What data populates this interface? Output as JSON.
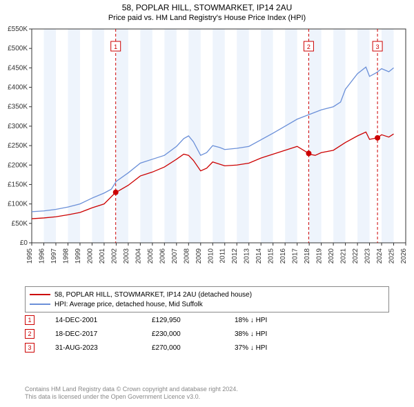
{
  "title": "58, POPLAR HILL, STOWMARKET, IP14 2AU",
  "subtitle": "Price paid vs. HM Land Registry's House Price Index (HPI)",
  "chart": {
    "type": "line",
    "background_color": "#ffffff",
    "band_color": "#eef4fc",
    "grid_color": "#e0e0e0",
    "axis_color": "#333333",
    "xlim": [
      1995,
      2026
    ],
    "ylim": [
      0,
      550000
    ],
    "ytick_step": 50000,
    "yticks": [
      "£0",
      "£50K",
      "£100K",
      "£150K",
      "£200K",
      "£250K",
      "£300K",
      "£350K",
      "£400K",
      "£450K",
      "£500K",
      "£550K"
    ],
    "xticks": [
      1995,
      1996,
      1997,
      1998,
      1999,
      2000,
      2001,
      2002,
      2003,
      2004,
      2005,
      2006,
      2007,
      2008,
      2009,
      2010,
      2011,
      2012,
      2013,
      2014,
      2015,
      2016,
      2017,
      2018,
      2019,
      2020,
      2021,
      2022,
      2023,
      2024,
      2025,
      2026
    ],
    "tick_fontsize": 10,
    "line_width": 1.3,
    "marker_radius": 4,
    "marker_color": "#cc0000",
    "markbox_border": "#cc0000",
    "dashed_line_color": "#cc0000",
    "series": [
      {
        "name": "hpi",
        "label": "HPI: Average price, detached house, Mid Suffolk",
        "color": "#6a8fd8",
        "data": [
          [
            1995,
            80000
          ],
          [
            1996,
            82000
          ],
          [
            1997,
            86000
          ],
          [
            1998,
            92000
          ],
          [
            1999,
            100000
          ],
          [
            2000,
            115000
          ],
          [
            2001,
            128000
          ],
          [
            2001.6,
            138000
          ],
          [
            2002,
            158000
          ],
          [
            2003,
            180000
          ],
          [
            2004,
            205000
          ],
          [
            2005,
            215000
          ],
          [
            2006,
            225000
          ],
          [
            2007,
            248000
          ],
          [
            2007.6,
            268000
          ],
          [
            2008,
            275000
          ],
          [
            2008.4,
            260000
          ],
          [
            2009,
            225000
          ],
          [
            2009.5,
            232000
          ],
          [
            2010,
            250000
          ],
          [
            2010.6,
            245000
          ],
          [
            2011,
            240000
          ],
          [
            2012,
            243000
          ],
          [
            2013,
            248000
          ],
          [
            2014,
            265000
          ],
          [
            2015,
            282000
          ],
          [
            2016,
            300000
          ],
          [
            2017,
            318000
          ],
          [
            2018,
            330000
          ],
          [
            2019,
            342000
          ],
          [
            2020,
            350000
          ],
          [
            2020.6,
            362000
          ],
          [
            2021,
            395000
          ],
          [
            2022,
            435000
          ],
          [
            2022.7,
            452000
          ],
          [
            2023,
            428000
          ],
          [
            2023.6,
            438000
          ],
          [
            2024,
            448000
          ],
          [
            2024.6,
            440000
          ],
          [
            2025,
            450000
          ]
        ]
      },
      {
        "name": "price_paid",
        "label": "58, POPLAR HILL, STOWMARKET, IP14 2AU (detached house)",
        "color": "#cc0000",
        "data": [
          [
            1995,
            62000
          ],
          [
            1996,
            64000
          ],
          [
            1997,
            67000
          ],
          [
            1998,
            72000
          ],
          [
            1999,
            78000
          ],
          [
            2000,
            90000
          ],
          [
            2001,
            100000
          ],
          [
            2001.96,
            129950
          ],
          [
            2002,
            130000
          ],
          [
            2003,
            148000
          ],
          [
            2004,
            172000
          ],
          [
            2005,
            182000
          ],
          [
            2006,
            195000
          ],
          [
            2007,
            215000
          ],
          [
            2007.6,
            228000
          ],
          [
            2008,
            225000
          ],
          [
            2008.4,
            212000
          ],
          [
            2009,
            185000
          ],
          [
            2009.5,
            192000
          ],
          [
            2010,
            208000
          ],
          [
            2010.6,
            202000
          ],
          [
            2011,
            198000
          ],
          [
            2012,
            200000
          ],
          [
            2013,
            205000
          ],
          [
            2014,
            218000
          ],
          [
            2015,
            228000
          ],
          [
            2016,
            238000
          ],
          [
            2017,
            248000
          ],
          [
            2017.96,
            230000
          ],
          [
            2018,
            228000
          ],
          [
            2018.5,
            225000
          ],
          [
            2019,
            232000
          ],
          [
            2020,
            238000
          ],
          [
            2021,
            258000
          ],
          [
            2022,
            275000
          ],
          [
            2022.7,
            285000
          ],
          [
            2023,
            266000
          ],
          [
            2023.66,
            270000
          ],
          [
            2024,
            278000
          ],
          [
            2024.6,
            272000
          ],
          [
            2025,
            280000
          ]
        ]
      }
    ],
    "markers": [
      {
        "n": "1",
        "x": 2001.96,
        "y": 129950
      },
      {
        "n": "2",
        "x": 2017.96,
        "y": 230000
      },
      {
        "n": "3",
        "x": 2023.66,
        "y": 270000
      }
    ]
  },
  "legend": {
    "line1_label": "58, POPLAR HILL, STOWMARKET, IP14 2AU (detached house)",
    "line1_color": "#cc0000",
    "line2_label": "HPI: Average price, detached house, Mid Suffolk",
    "line2_color": "#6a8fd8"
  },
  "transactions": [
    {
      "n": "1",
      "date": "14-DEC-2001",
      "price": "£129,950",
      "pct": "18% ↓ HPI"
    },
    {
      "n": "2",
      "date": "18-DEC-2017",
      "price": "£230,000",
      "pct": "38% ↓ HPI"
    },
    {
      "n": "3",
      "date": "31-AUG-2023",
      "price": "£270,000",
      "pct": "37% ↓ HPI"
    }
  ],
  "attribution": {
    "line1": "Contains HM Land Registry data © Crown copyright and database right 2024.",
    "line2": "This data is licensed under the Open Government Licence v3.0."
  }
}
